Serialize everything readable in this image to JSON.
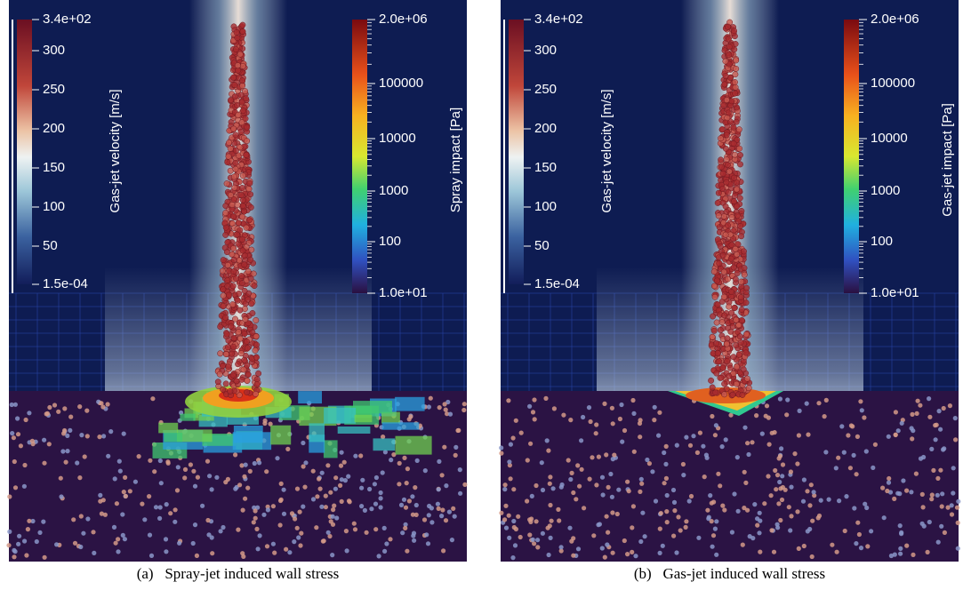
{
  "panels": [
    {
      "velocity_bar": {
        "title": "Gas-jet velocity [m/s]",
        "ticks": [
          "3.4e+02",
          "300",
          "250",
          "200",
          "150",
          "100",
          "50",
          "1.5e-04"
        ]
      },
      "impact_bar": {
        "title": "Spray impact [Pa]",
        "ticks": [
          "2.0e+06",
          "100000",
          "10000",
          "1000",
          "100",
          "1.0e+01"
        ]
      },
      "caption": {
        "label": "(a)",
        "text": "Spray-jet induced wall stress"
      }
    },
    {
      "velocity_bar": {
        "title": "Gas-jet velocity [m/s]",
        "ticks": [
          "3.4e+02",
          "300",
          "250",
          "200",
          "150",
          "100",
          "50",
          "1.5e-04"
        ]
      },
      "impact_bar": {
        "title": "Gas-jet impact [Pa]",
        "ticks": [
          "2.0e+06",
          "100000",
          "10000",
          "1000",
          "100",
          "1.0e+01"
        ]
      },
      "caption": {
        "label": "(b)",
        "text": "Gas-jet induced wall stress"
      }
    }
  ]
}
